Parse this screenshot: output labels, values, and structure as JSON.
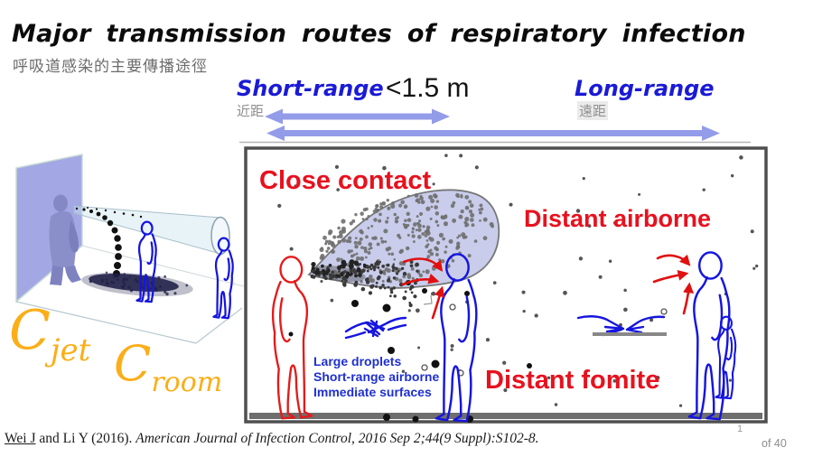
{
  "slide": {
    "title": "Major transmission routes of respiratory infection",
    "subtitle_zh": "呼吸道感染的主要傳播途徑",
    "citation": {
      "authors_underlined": "Wei J",
      "authors_rest": " and Li Y (2016). ",
      "journal": "American Journal of Infection Control, 2016 Sep 2;44(9 Suppl):S102-8."
    },
    "page_number": "1",
    "page_total": "of 40"
  },
  "range_header": {
    "short_label": "Short-range",
    "short_label_zh": "近距",
    "distance_note": "<1.5 m",
    "long_label": "Long-range",
    "long_label_zh": "遠距"
  },
  "room_diagram": {
    "close_contact_label": "Close contact",
    "distant_airborne_label": "Distant airborne",
    "distant_fomite_label": "Distant fomite",
    "short_range_mechanisms": [
      "Large droplets",
      "Short-range airborne",
      "Immediate surfaces"
    ]
  },
  "concentration_labels": {
    "jet_base": "C",
    "jet_sub": "jet",
    "room_base": "C",
    "room_sub": "room"
  },
  "colors": {
    "label_red": "#e8111e",
    "label_blue": "#1a1ad6",
    "mechanism_blue": "#1f2fd0",
    "figure_blue": "#1515e0",
    "figure_red": "#e41b1b",
    "arrow_red": "#e01010",
    "range_arrow": "#939ce8",
    "cloud_fill": "#c9cdeb",
    "gold": "#FBAE17",
    "wall_purple": "#a3a7e3"
  }
}
